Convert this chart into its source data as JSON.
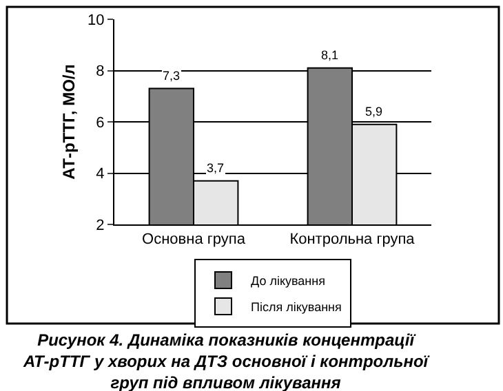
{
  "chart_data": {
    "type": "bar",
    "categories": [
      "Основна група",
      "Контрольна група"
    ],
    "series": [
      {
        "name": "До лікування",
        "color": "#808080",
        "values": [
          7.3,
          8.1
        ],
        "value_labels": [
          "7,3",
          "8,1"
        ]
      },
      {
        "name": "Після лікування",
        "color": "#e6e6e6",
        "values": [
          3.7,
          5.9
        ],
        "value_labels": [
          "3,7",
          "5,9"
        ]
      }
    ],
    "ylabel": "АТ-рТТГ, МО/л",
    "ylim": [
      2,
      10
    ],
    "yticks": [
      2,
      4,
      6,
      8,
      10
    ],
    "grid": "y",
    "legend": "bottom",
    "annotations": [
      "Рисунок 4. Динаміка показників концентрації\nАТ-рТТГ у хворих на ДТЗ основної і контрольної\nгруп під впливом лікування"
    ]
  }
}
